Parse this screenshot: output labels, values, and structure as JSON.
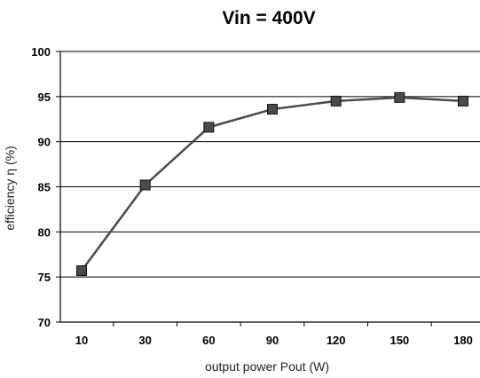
{
  "chart_data": {
    "type": "line",
    "title": "Vin = 400V",
    "xlabel": "output power Pout (W)",
    "ylabel": "efficiency η (%)",
    "categories": [
      "10",
      "30",
      "60",
      "90",
      "120",
      "150",
      "180"
    ],
    "series": [
      {
        "values": [
          75.7,
          85.2,
          91.6,
          93.6,
          94.5,
          94.9,
          94.5
        ]
      }
    ],
    "ylim": [
      70,
      100
    ],
    "yticks": [
      70,
      75,
      80,
      85,
      90,
      95,
      100
    ],
    "grid": "horizontal",
    "legend": "none",
    "colors": {
      "line": "#4a4a4a",
      "marker": "#4a4a4a",
      "marker_edge": "#111111",
      "grid": "#000000"
    }
  }
}
